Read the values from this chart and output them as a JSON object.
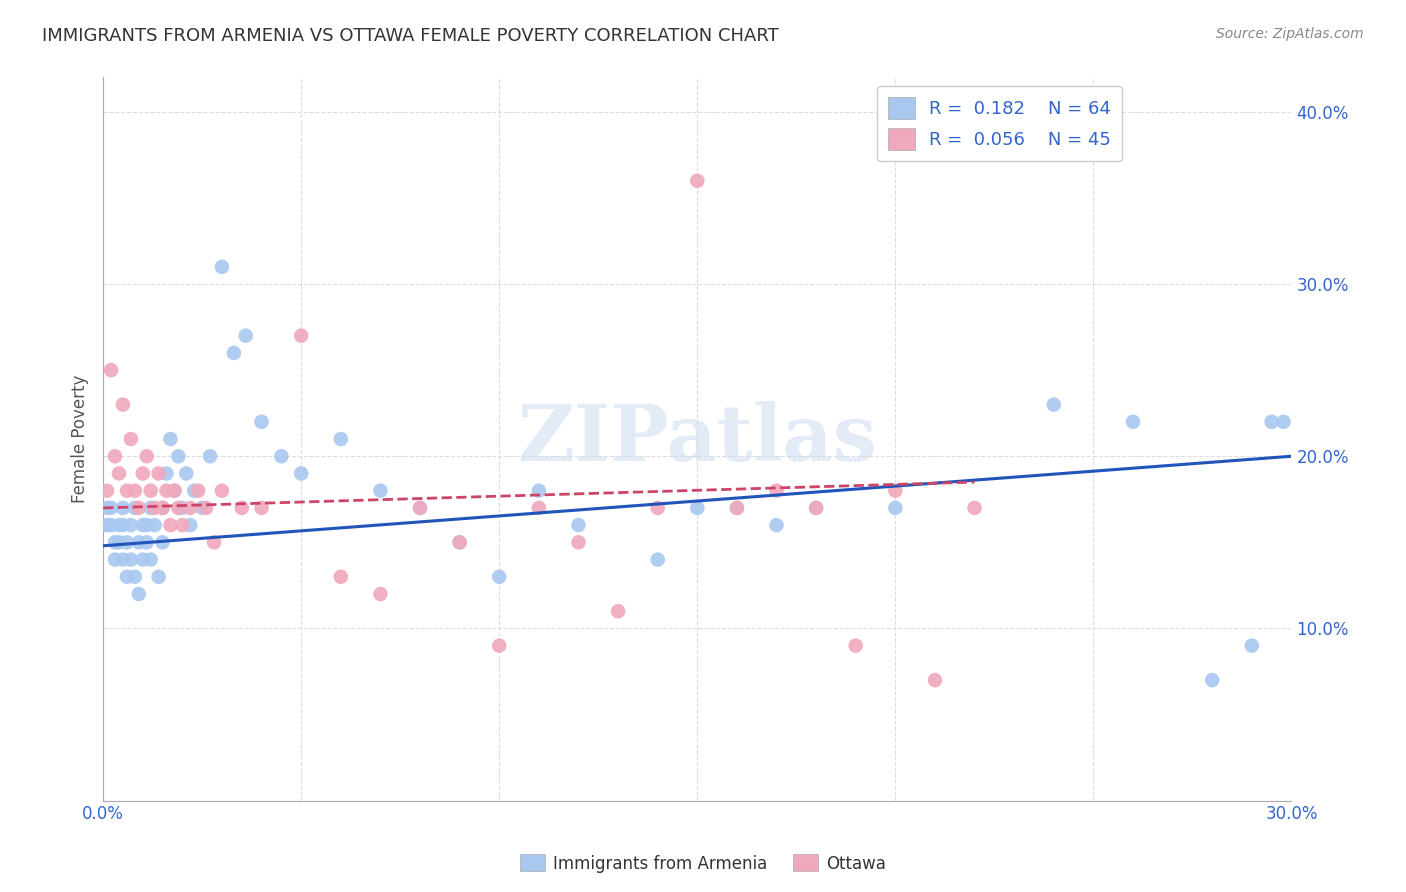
{
  "title": "IMMIGRANTS FROM ARMENIA VS OTTAWA FEMALE POVERTY CORRELATION CHART",
  "source": "Source: ZipAtlas.com",
  "ylabel": "Female Poverty",
  "xlim": [
    0.0,
    0.3
  ],
  "ylim": [
    0.0,
    0.42
  ],
  "background_color": "#ffffff",
  "grid_color": "#dddddd",
  "blue_color": "#a8c8f0",
  "pink_color": "#f0a8bc",
  "blue_line_color": "#2255bb",
  "pink_line_color": "#cc4466",
  "watermark": "ZIPatlas",
  "legend_label1": "Immigrants from Armenia",
  "legend_label2": "Ottawa",
  "blue_x": [
    0.001,
    0.001,
    0.002,
    0.002,
    0.003,
    0.003,
    0.004,
    0.004,
    0.005,
    0.005,
    0.005,
    0.006,
    0.006,
    0.007,
    0.007,
    0.008,
    0.008,
    0.009,
    0.009,
    0.01,
    0.01,
    0.011,
    0.011,
    0.012,
    0.012,
    0.013,
    0.014,
    0.015,
    0.015,
    0.016,
    0.017,
    0.018,
    0.019,
    0.02,
    0.021,
    0.022,
    0.023,
    0.025,
    0.027,
    0.03,
    0.033,
    0.036,
    0.04,
    0.045,
    0.05,
    0.06,
    0.07,
    0.08,
    0.09,
    0.1,
    0.11,
    0.12,
    0.14,
    0.15,
    0.16,
    0.17,
    0.18,
    0.2,
    0.24,
    0.26,
    0.28,
    0.29,
    0.295,
    0.298
  ],
  "blue_y": [
    0.17,
    0.16,
    0.17,
    0.16,
    0.15,
    0.14,
    0.16,
    0.15,
    0.17,
    0.16,
    0.14,
    0.15,
    0.13,
    0.16,
    0.14,
    0.17,
    0.13,
    0.15,
    0.12,
    0.16,
    0.14,
    0.15,
    0.16,
    0.14,
    0.17,
    0.16,
    0.13,
    0.15,
    0.17,
    0.19,
    0.21,
    0.18,
    0.2,
    0.17,
    0.19,
    0.16,
    0.18,
    0.17,
    0.2,
    0.31,
    0.26,
    0.27,
    0.22,
    0.2,
    0.19,
    0.21,
    0.18,
    0.17,
    0.15,
    0.13,
    0.18,
    0.16,
    0.14,
    0.17,
    0.17,
    0.16,
    0.17,
    0.17,
    0.23,
    0.22,
    0.07,
    0.09,
    0.22,
    0.22
  ],
  "pink_x": [
    0.001,
    0.002,
    0.003,
    0.004,
    0.005,
    0.006,
    0.007,
    0.008,
    0.009,
    0.01,
    0.011,
    0.012,
    0.013,
    0.014,
    0.015,
    0.016,
    0.017,
    0.018,
    0.019,
    0.02,
    0.022,
    0.024,
    0.026,
    0.028,
    0.03,
    0.035,
    0.04,
    0.05,
    0.06,
    0.07,
    0.08,
    0.09,
    0.1,
    0.11,
    0.12,
    0.13,
    0.14,
    0.15,
    0.16,
    0.17,
    0.18,
    0.19,
    0.2,
    0.21,
    0.22
  ],
  "pink_y": [
    0.18,
    0.25,
    0.2,
    0.19,
    0.23,
    0.18,
    0.21,
    0.18,
    0.17,
    0.19,
    0.2,
    0.18,
    0.17,
    0.19,
    0.17,
    0.18,
    0.16,
    0.18,
    0.17,
    0.16,
    0.17,
    0.18,
    0.17,
    0.15,
    0.18,
    0.17,
    0.17,
    0.27,
    0.13,
    0.12,
    0.17,
    0.15,
    0.09,
    0.17,
    0.15,
    0.11,
    0.17,
    0.36,
    0.17,
    0.18,
    0.17,
    0.09,
    0.18,
    0.07,
    0.17
  ],
  "blue_trend_x": [
    0.0,
    0.3
  ],
  "blue_trend_y": [
    0.148,
    0.2
  ],
  "pink_trend_x": [
    0.0,
    0.22
  ],
  "pink_trend_y": [
    0.17,
    0.185
  ]
}
